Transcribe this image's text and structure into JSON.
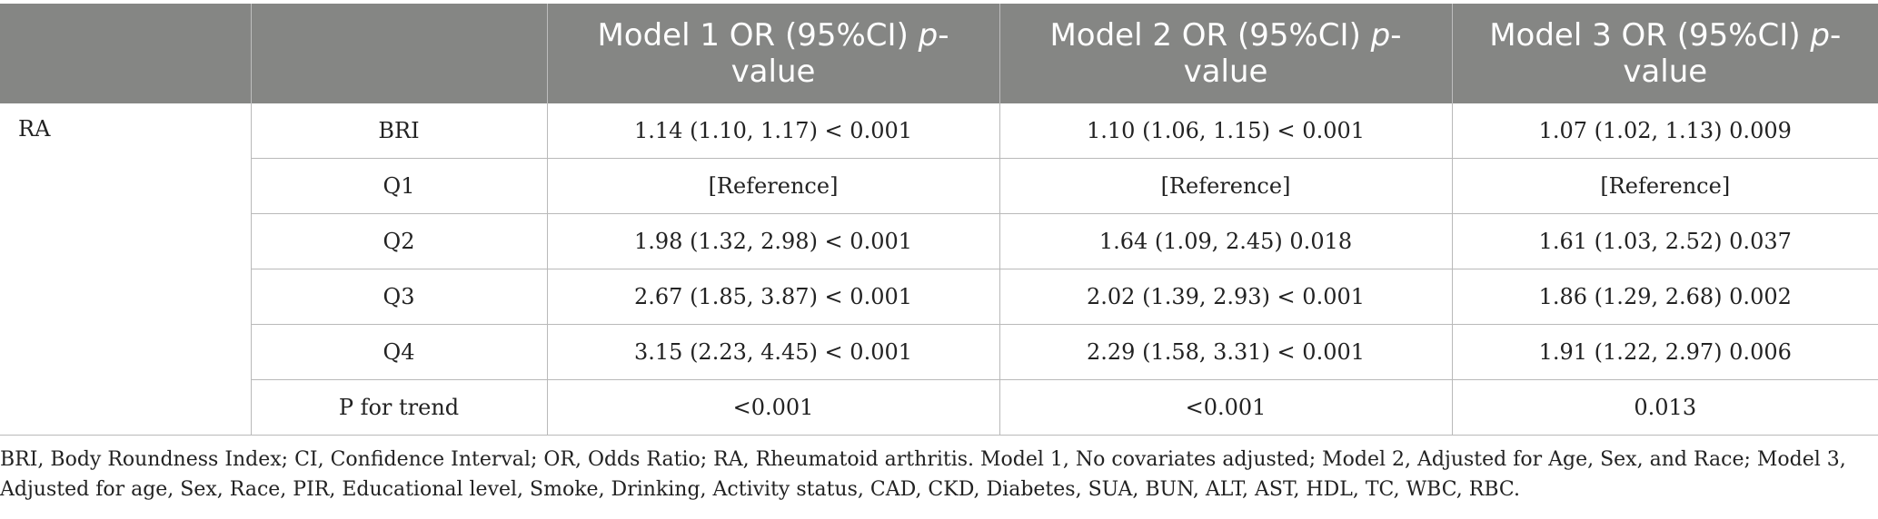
{
  "table": {
    "headers": [
      "",
      "",
      "Model 1 OR (95%CI) ",
      "Model 2 OR (95%CI) ",
      "Model 3 OR (95%CI) "
    ],
    "header_italic": [
      "",
      "",
      "p",
      "p",
      "p"
    ],
    "header_tail": [
      "",
      "",
      "-value",
      "-value",
      "-value"
    ],
    "group": "RA",
    "rows": [
      {
        "label": "BRI",
        "m1": "1.14 (1.10, 1.17) < 0.001",
        "m2": "1.10 (1.06, 1.15) < 0.001",
        "m3": "1.07 (1.02, 1.13) 0.009"
      },
      {
        "label": "Q1",
        "m1": "[Reference]",
        "m2": "[Reference]",
        "m3": "[Reference]"
      },
      {
        "label": "Q2",
        "m1": "1.98 (1.32, 2.98) < 0.001",
        "m2": "1.64 (1.09, 2.45) 0.018",
        "m3": "1.61 (1.03, 2.52) 0.037"
      },
      {
        "label": "Q3",
        "m1": "2.67 (1.85, 3.87) < 0.001",
        "m2": "2.02 (1.39, 2.93) < 0.001",
        "m3": "1.86 (1.29, 2.68) 0.002"
      },
      {
        "label": "Q4",
        "m1": "3.15 (2.23, 4.45) < 0.001",
        "m2": "2.29 (1.58, 3.31) < 0.001",
        "m3": "1.91 (1.22, 2.97) 0.006"
      },
      {
        "label": "P for trend",
        "m1": "<0.001",
        "m2": "<0.001",
        "m3": "0.013"
      }
    ]
  },
  "footnote": "BRI, Body Roundness Index; CI, Confidence Interval; OR, Odds Ratio; RA, Rheumatoid arthritis. Model 1, No covariates adjusted; Model 2, Adjusted for Age, Sex, and Race; Model 3, Adjusted for age, Sex, Race, PIR, Educational level, Smoke, Drinking, Activity status, CAD, CKD, Diabetes, SUA, BUN, ALT, AST, HDL, TC, WBC, RBC."
}
